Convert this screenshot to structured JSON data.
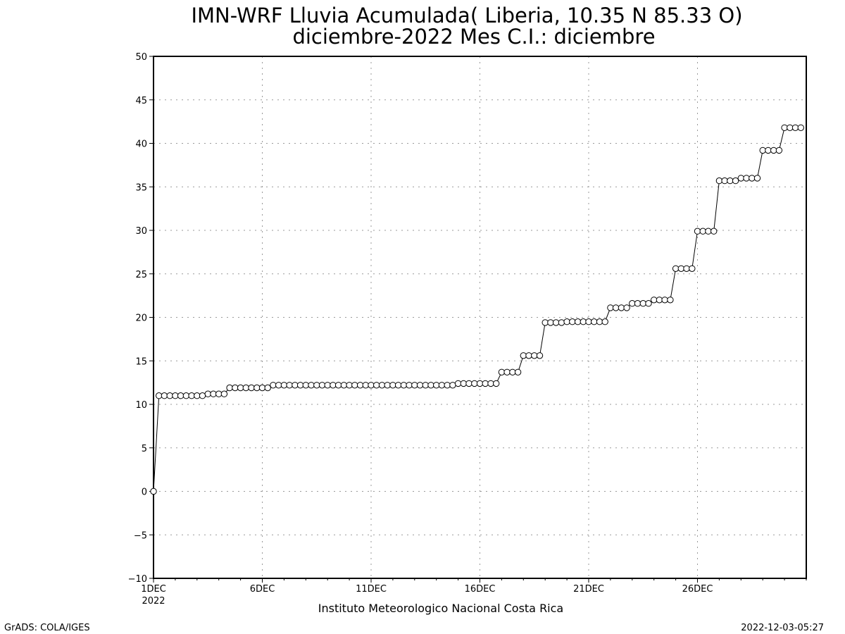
{
  "chart_data": {
    "type": "line",
    "title": "IMN-WRF  Lluvia Acumulada( Liberia, 10.35  N 85.33  O)",
    "subtitle": "diciembre-2022 Mes C.I.: diciembre",
    "xlabel": "Instituto Meteorologico Nacional Costa Rica",
    "ylabel": "",
    "ylim": [
      -10,
      50
    ],
    "yticks": [
      "50",
      "45",
      "40",
      "35",
      "30",
      "25",
      "20",
      "15",
      "10",
      "5",
      "0",
      "−5",
      "−10"
    ],
    "xlim_days": [
      1,
      31
    ],
    "xticks": [
      {
        "day": 1,
        "label": "1DEC",
        "sublabel": "2022"
      },
      {
        "day": 6,
        "label": "6DEC"
      },
      {
        "day": 11,
        "label": "11DEC"
      },
      {
        "day": 16,
        "label": "16DEC"
      },
      {
        "day": 21,
        "label": "21DEC"
      },
      {
        "day": 26,
        "label": "26DEC"
      }
    ],
    "grid": true,
    "marker": "open-circle",
    "series": [
      {
        "step_hours": 6,
        "start": "2022-12-01 00:00",
        "values": [
          0,
          11.0,
          11.0,
          11.0,
          11.0,
          11.0,
          11.0,
          11.0,
          11.0,
          11.0,
          11.2,
          11.2,
          11.2,
          11.2,
          11.9,
          11.9,
          11.9,
          11.9,
          11.9,
          11.9,
          11.9,
          11.9,
          12.2,
          12.2,
          12.2,
          12.2,
          12.2,
          12.2,
          12.2,
          12.2,
          12.2,
          12.2,
          12.2,
          12.2,
          12.2,
          12.2,
          12.2,
          12.2,
          12.2,
          12.2,
          12.2,
          12.2,
          12.2,
          12.2,
          12.2,
          12.2,
          12.2,
          12.2,
          12.2,
          12.2,
          12.2,
          12.2,
          12.2,
          12.2,
          12.2,
          12.2,
          12.4,
          12.4,
          12.4,
          12.4,
          12.4,
          12.4,
          12.4,
          12.4,
          13.7,
          13.7,
          13.7,
          13.7,
          15.6,
          15.6,
          15.6,
          15.6,
          19.4,
          19.4,
          19.4,
          19.4,
          19.5,
          19.5,
          19.5,
          19.5,
          19.5,
          19.5,
          19.5,
          19.5,
          21.1,
          21.1,
          21.1,
          21.1,
          21.6,
          21.6,
          21.6,
          21.6,
          22.0,
          22.0,
          22.0,
          22.0,
          25.6,
          25.6,
          25.6,
          25.6,
          29.9,
          29.9,
          29.9,
          29.9,
          35.7,
          35.7,
          35.7,
          35.7,
          36.0,
          36.0,
          36.0,
          36.0,
          39.2,
          39.2,
          39.2,
          39.2,
          41.8,
          41.8,
          41.8,
          41.8
        ]
      }
    ]
  },
  "footer": {
    "left": "GrADS: COLA/IGES",
    "right": "2022-12-03-05:27"
  }
}
